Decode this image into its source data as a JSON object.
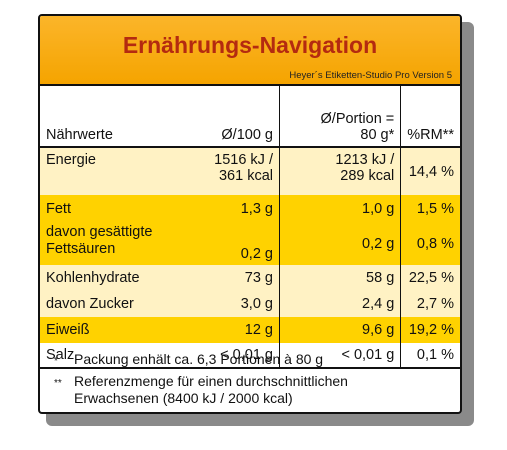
{
  "header": {
    "title": "Ernährungs-Navigation",
    "subtitle": "Heyer´s Etiketten-Studio Pro Version 5"
  },
  "table": {
    "columns": {
      "nutrient": "Nährwerte",
      "per100_line1": "Ø/100 g",
      "portion_line1": "Ø/Portion =",
      "portion_line2": "80 g*",
      "rm": "%RM**"
    },
    "rows": [
      {
        "name_line1": "Energie",
        "name_line2": "",
        "per100_line1": "1516 kJ /",
        "per100_line2": "361 kcal",
        "portion_line1": "1213 kJ /",
        "portion_line2": "289 kcal",
        "rm": "14,4 %"
      },
      {
        "name_line1": "Fett",
        "name_line2": "",
        "per100_line1": "1,3 g",
        "per100_line2": "",
        "portion_line1": "1,0 g",
        "portion_line2": "",
        "rm": "1,5 %"
      },
      {
        "name_line1": "davon gesättigte",
        "name_line2": "Fettsäuren",
        "per100_line1": "0,2 g",
        "per100_line2": "",
        "portion_line1": "0,2 g",
        "portion_line2": "",
        "rm": "0,8 %"
      },
      {
        "name_line1": "Kohlenhydrate",
        "name_line2": "",
        "per100_line1": "73 g",
        "per100_line2": "",
        "portion_line1": "58 g",
        "portion_line2": "",
        "rm": "22,5 %"
      },
      {
        "name_line1": "davon Zucker",
        "name_line2": "",
        "per100_line1": "3,0 g",
        "per100_line2": "",
        "portion_line1": "2,4 g",
        "portion_line2": "",
        "rm": "2,7 %"
      },
      {
        "name_line1": "Eiweiß",
        "name_line2": "",
        "per100_line1": "12 g",
        "per100_line2": "",
        "portion_line1": "9,6 g",
        "portion_line2": "",
        "rm": "19,2 %"
      },
      {
        "name_line1": "Salz",
        "name_line2": "",
        "per100_line1": "< 0,01 g",
        "per100_line2": "",
        "portion_line1": "< 0,01 g",
        "portion_line2": "",
        "rm": "0,1 %"
      }
    ]
  },
  "footnotes": [
    {
      "mark": "*",
      "line1": "Packung enhält ca. 6,3 Portionen à 80 g",
      "line2": ""
    },
    {
      "mark": "**",
      "line1": "Referenzmenge für einen durchschnittlichen",
      "line2": "Erwachsenen (8400 kJ / 2000 kcal)"
    }
  ],
  "colors": {
    "header": "#f5a400",
    "title": "#b42a10",
    "row_light": "#fff2c4",
    "row_dark": "#ffd200"
  }
}
